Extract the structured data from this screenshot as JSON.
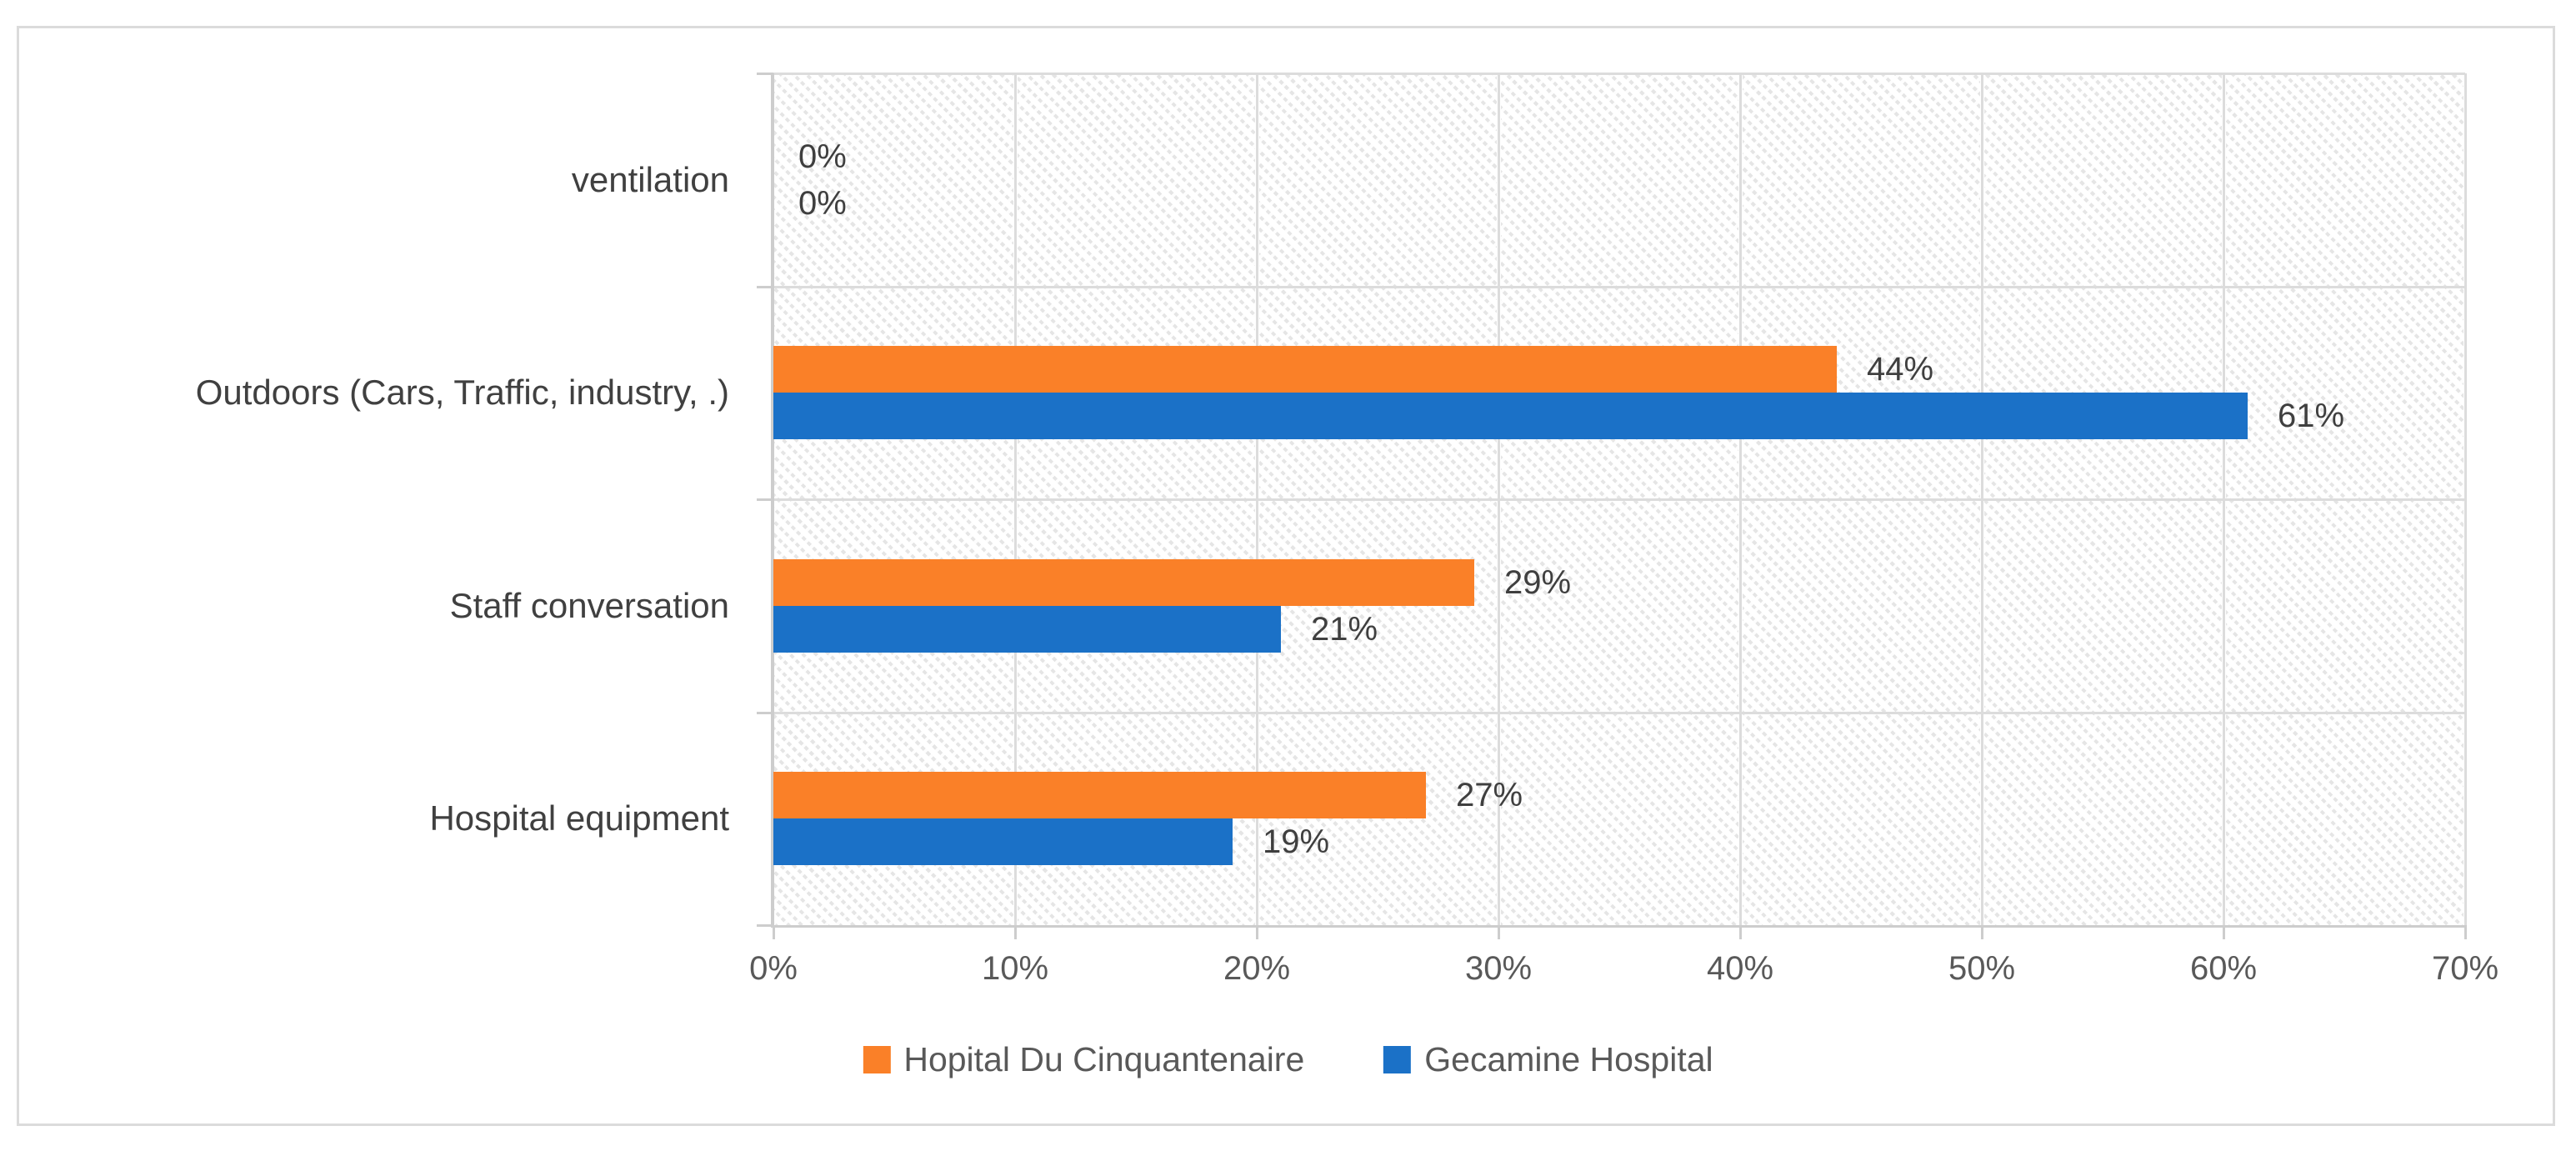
{
  "chart_data": {
    "type": "bar",
    "orientation": "horizontal",
    "title": "",
    "xlabel": "",
    "ylabel": "",
    "categories": [
      "ventilation",
      "Outdoors (Cars, Traffic, industry, .)",
      "Staff conversation",
      "Hospital equipment"
    ],
    "series": [
      {
        "name": "Hopital Du Cinquantenaire",
        "color": "#FA8028",
        "values": [
          0,
          44,
          29,
          27
        ],
        "labels": [
          "0%",
          "44%",
          "29%",
          "27%"
        ]
      },
      {
        "name": "Gecamine Hospital",
        "color": "#1B71C7",
        "values": [
          0,
          61,
          21,
          19
        ],
        "labels": [
          "0%",
          "61%",
          "21%",
          "19%"
        ]
      }
    ],
    "x_ticks": [
      "0%",
      "10%",
      "20%",
      "30%",
      "40%",
      "50%",
      "60%",
      "70%"
    ],
    "xlim": [
      0,
      70
    ],
    "grid": true,
    "plot_pattern": "light-downward-diagonal-hatch",
    "legend_position": "bottom"
  },
  "colors": {
    "series_orange": "#FA8028",
    "series_blue": "#1B71C7",
    "gridline": "#DCDCDC",
    "axis_line": "#CDCDCD",
    "chart_border": "#DBDBDB",
    "hatch": "#E5E5E5",
    "label_text": "#3F3F3F",
    "axis_text": "#595959"
  }
}
